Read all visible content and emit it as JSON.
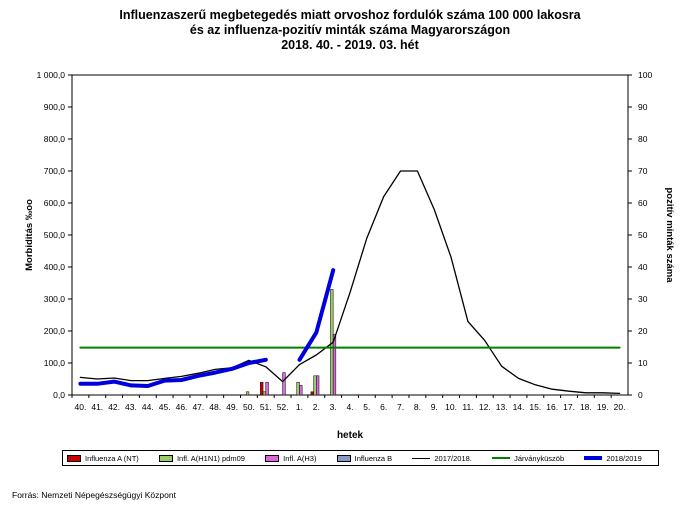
{
  "chart_data": {
    "type": "bar+line",
    "title_lines": [
      "Influenzaszerű megbetegedés miatt orvoshoz fordulók száma 100 000 lakosra",
      "és az influenza-pozitív minták száma Magyarországon",
      "2018. 40. - 2019. 03. hét"
    ],
    "xlabel": "hetek",
    "ylabel": "Morbiditás ‰oo",
    "y2label": "pozitív minták száma",
    "ylim": [
      0,
      1000
    ],
    "y2lim": [
      0,
      100
    ],
    "y_ticks": [
      "0,0",
      "100,0",
      "200,0",
      "300,0",
      "400,0",
      "500,0",
      "600,0",
      "700,0",
      "800,0",
      "900,0",
      "1 000,0"
    ],
    "y2_ticks": [
      "0",
      "10",
      "20",
      "30",
      "40",
      "50",
      "60",
      "70",
      "80",
      "90",
      "100"
    ],
    "categories": [
      "40.",
      "41.",
      "42.",
      "43.",
      "44.",
      "45.",
      "46.",
      "47.",
      "48.",
      "49.",
      "50.",
      "51.",
      "52.",
      "1.",
      "2.",
      "3.",
      "4.",
      "5.",
      "6.",
      "7.",
      "8.",
      "9.",
      "10.",
      "11.",
      "12.",
      "13.",
      "14.",
      "15.",
      "16.",
      "17.",
      "18.",
      "19.",
      "20."
    ],
    "bar_series": [
      {
        "name": "Influenza A (NT)",
        "color": "#cc0000",
        "values": [
          0,
          0,
          0,
          0,
          0,
          0,
          0,
          0,
          0,
          0,
          0,
          4,
          0,
          0,
          1,
          0,
          0,
          0,
          0,
          0,
          0,
          0,
          0,
          0,
          0,
          0,
          0,
          0,
          0,
          0,
          0,
          0,
          0
        ]
      },
      {
        "name": "Infl. A(H1N1) pdm09",
        "color": "#99cc66",
        "values": [
          0,
          0,
          0,
          0,
          0,
          0,
          0,
          0,
          0,
          0,
          1,
          1,
          0,
          4,
          6,
          33,
          0,
          0,
          0,
          0,
          0,
          0,
          0,
          0,
          0,
          0,
          0,
          0,
          0,
          0,
          0,
          0,
          0
        ]
      },
      {
        "name": "Infl. A(H3)",
        "color": "#dd66dd",
        "values": [
          0,
          0,
          0,
          0,
          0,
          0,
          0,
          0,
          0,
          0,
          0,
          4,
          7,
          3,
          6,
          19,
          0,
          0,
          0,
          0,
          0,
          0,
          0,
          0,
          0,
          0,
          0,
          0,
          0,
          0,
          0,
          0,
          0
        ]
      },
      {
        "name": "Influenza B",
        "color": "#8899cc",
        "values": [
          0,
          0,
          0,
          0,
          0,
          0,
          0,
          0,
          0,
          0,
          0,
          0,
          0,
          0,
          0,
          0,
          0,
          0,
          0,
          0,
          0,
          0,
          0,
          0,
          0,
          0,
          0,
          0,
          0,
          0,
          0,
          0,
          0
        ]
      }
    ],
    "line_series": [
      {
        "name": "2017/2018.",
        "color": "#000000",
        "values": [
          55,
          50,
          53,
          45,
          45,
          52,
          58,
          68,
          80,
          85,
          108,
          88,
          42,
          95,
          125,
          165,
          320,
          490,
          620,
          700,
          700,
          580,
          430,
          230,
          170,
          90,
          52,
          32,
          18,
          12,
          7,
          7,
          5
        ]
      },
      {
        "name": "Járványküszöb",
        "color": "#008000",
        "values": [
          148,
          148,
          148,
          148,
          148,
          148,
          148,
          148,
          148,
          148,
          148,
          148,
          148,
          148,
          148,
          148,
          148,
          148,
          148,
          148,
          148,
          148,
          148,
          148,
          148,
          148,
          148,
          148,
          148,
          148,
          148,
          148,
          148
        ]
      },
      {
        "name": "2018/2019",
        "color": "#0000dd",
        "values": [
          35,
          35,
          42,
          30,
          28,
          45,
          47,
          60,
          70,
          82,
          100,
          110,
          null,
          110,
          195,
          390,
          null,
          null,
          null,
          null,
          null,
          null,
          null,
          null,
          null,
          null,
          null,
          null,
          null,
          null,
          null,
          null,
          null
        ]
      }
    ],
    "grid": false,
    "legend_position": "bottom"
  },
  "source": "Forrás: Nemzeti Népegészségügyi Központ"
}
